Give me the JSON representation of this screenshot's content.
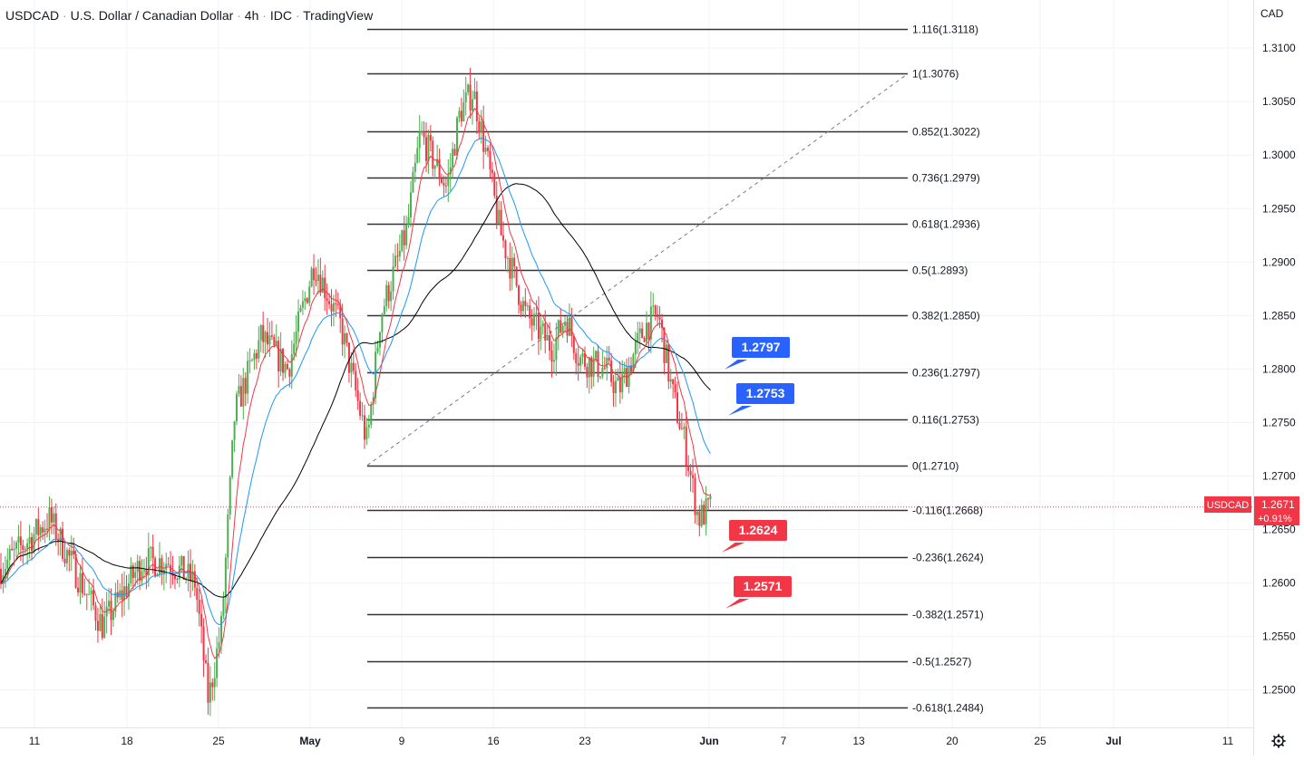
{
  "header": {
    "symbol": "USDCAD",
    "name": "U.S. Dollar / Canadian Dollar",
    "interval": "4h",
    "exchange": "IDC",
    "platform": "TradingView",
    "separator": "·"
  },
  "price_axis": {
    "currency": "CAD",
    "ticks": [
      "1.2500",
      "1.2550",
      "1.2600",
      "1.2650",
      "1.2700",
      "1.2750",
      "1.2800",
      "1.2850",
      "1.2900",
      "1.2950",
      "1.3000",
      "1.3050",
      "1.3100"
    ]
  },
  "time_axis": {
    "ticks": [
      "11",
      "18",
      "25",
      "May",
      "9",
      "16",
      "23",
      "Jun",
      "7",
      "13",
      "20",
      "25",
      "Jul",
      "11"
    ]
  },
  "last_price": {
    "label": "USDCAD",
    "price": "1.2671",
    "change": "+0.91%"
  },
  "colors": {
    "up": "#4caf50",
    "down": "#f23645",
    "ema_fast": "#f23645",
    "ema_mid": "#2196f3",
    "sma_slow": "#000000",
    "fib_line": "#333333",
    "callout_blue": "#2962ff",
    "callout_red": "#f23645",
    "last_price_bg": "#f23645"
  },
  "callouts": [
    {
      "text": "1.2797",
      "color": "blue"
    },
    {
      "text": "1.2753",
      "color": "blue"
    },
    {
      "text": "1.2624",
      "color": "red"
    },
    {
      "text": "1.2571",
      "color": "red"
    }
  ],
  "chart_data": {
    "type": "candlestick",
    "title": "USDCAD · U.S. Dollar / Canadian Dollar · 4h · IDC · TradingView",
    "ylim": [
      1.2465,
      1.3145
    ],
    "x_tick_labels": [
      "11",
      "18",
      "25",
      "May",
      "9",
      "16",
      "23",
      "Jun",
      "7",
      "13",
      "20",
      "25",
      "Jul",
      "11"
    ],
    "y_tick_labels": [
      "1.2500",
      "1.2550",
      "1.2600",
      "1.2650",
      "1.2700",
      "1.2750",
      "1.2800",
      "1.2850",
      "1.2900",
      "1.2950",
      "1.3000",
      "1.3050",
      "1.3100"
    ],
    "price_waypoints": [
      {
        "date": "Apr 7",
        "price": 1.256
      },
      {
        "date": "Apr 8",
        "price": 1.261
      },
      {
        "date": "Apr 12",
        "price": 1.266
      },
      {
        "date": "Apr 14",
        "price": 1.261
      },
      {
        "date": "Apr 16",
        "price": 1.256
      },
      {
        "date": "Apr 19",
        "price": 1.262
      },
      {
        "date": "Apr 21",
        "price": 1.262
      },
      {
        "date": "Apr 23",
        "price": 1.26
      },
      {
        "date": "Apr 24",
        "price": 1.249
      },
      {
        "date": "Apr 25",
        "price": 1.256
      },
      {
        "date": "Apr 26",
        "price": 1.276
      },
      {
        "date": "Apr 28",
        "price": 1.283
      },
      {
        "date": "Apr 30",
        "price": 1.28
      },
      {
        "date": "May 2",
        "price": 1.29
      },
      {
        "date": "May 4",
        "price": 1.284
      },
      {
        "date": "May 6",
        "price": 1.273
      },
      {
        "date": "May 7",
        "price": 1.285
      },
      {
        "date": "May 9",
        "price": 1.293
      },
      {
        "date": "May 10",
        "price": 1.302
      },
      {
        "date": "May 12",
        "price": 1.297
      },
      {
        "date": "May 13",
        "price": 1.304
      },
      {
        "date": "May 14",
        "price": 1.306
      },
      {
        "date": "May 15",
        "price": 1.3
      },
      {
        "date": "May 16",
        "price": 1.293
      },
      {
        "date": "May 18",
        "price": 1.285
      },
      {
        "date": "May 20",
        "price": 1.282
      },
      {
        "date": "May 21",
        "price": 1.285
      },
      {
        "date": "May 22",
        "price": 1.281
      },
      {
        "date": "May 24",
        "price": 1.28
      },
      {
        "date": "May 25",
        "price": 1.278
      },
      {
        "date": "May 26",
        "price": 1.281
      },
      {
        "date": "May 27",
        "price": 1.284
      },
      {
        "date": "May 28",
        "price": 1.285
      },
      {
        "date": "May 29",
        "price": 1.278
      },
      {
        "date": "May 30",
        "price": 1.273
      },
      {
        "date": "May 31",
        "price": 1.266
      },
      {
        "date": "Jun 1",
        "price": 1.2671
      }
    ],
    "fib_levels": [
      {
        "label": "1.116(1.3118)",
        "value": 1.3118
      },
      {
        "label": "1(1.3076)",
        "value": 1.3076
      },
      {
        "label": "0.852(1.3022)",
        "value": 1.3022
      },
      {
        "label": "0.736(1.2979)",
        "value": 1.2979
      },
      {
        "label": "0.618(1.2936)",
        "value": 1.2936
      },
      {
        "label": "0.5(1.2893)",
        "value": 1.2893
      },
      {
        "label": "0.382(1.2850)",
        "value": 1.285
      },
      {
        "label": "0.236(1.2797)",
        "value": 1.2797
      },
      {
        "label": "0.116(1.2753)",
        "value": 1.2753
      },
      {
        "label": "0(1.2710)",
        "value": 1.271
      },
      {
        "label": "-0.116(1.2668)",
        "value": 1.2668
      },
      {
        "label": "-0.236(1.2624)",
        "value": 1.2624
      },
      {
        "label": "-0.382(1.2571)",
        "value": 1.2571
      },
      {
        "label": "-0.5(1.2527)",
        "value": 1.2527
      },
      {
        "label": "-0.618(1.2484)",
        "value": 1.2484
      }
    ],
    "fib_anchor_low": {
      "date": "May 6",
      "price": 1.271
    },
    "fib_anchor_high": {
      "date": "May 14",
      "price": 1.3076
    },
    "last_price": 1.2671,
    "change_percent": "+0.91%",
    "indicators": [
      "EMA (red)",
      "EMA (blue)",
      "SMA (black)"
    ]
  }
}
